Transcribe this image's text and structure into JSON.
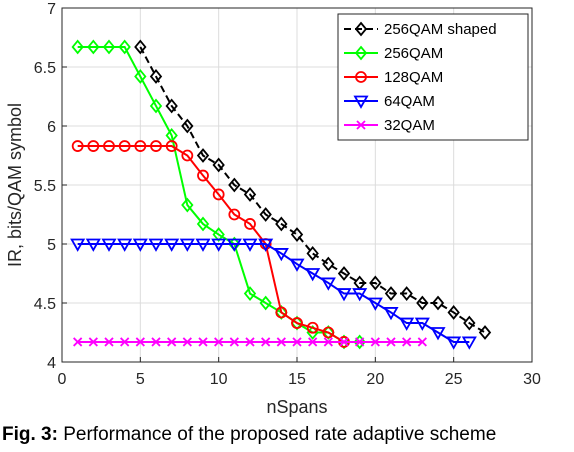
{
  "caption": {
    "label": "Fig. 3:",
    "text": " Performance of the proposed rate adaptive scheme"
  },
  "chart_data": {
    "type": "line",
    "xlabel": "nSpans",
    "ylabel": "IR, bits/QAM symbol",
    "xlim": [
      0,
      30
    ],
    "ylim": [
      4,
      7
    ],
    "xticks": [
      0,
      5,
      10,
      15,
      20,
      25,
      30
    ],
    "yticks": [
      4,
      4.5,
      5,
      5.5,
      6,
      6.5,
      7
    ],
    "ytick_labels": [
      "4",
      "4.5",
      "5",
      "5.5",
      "6",
      "6.5",
      "7"
    ],
    "grid": true,
    "legend_position": "top-right",
    "series": [
      {
        "name": "256QAM shaped",
        "color": "#000000",
        "dash": true,
        "marker": "diamond",
        "x": [
          5,
          6,
          7,
          8,
          9,
          10,
          11,
          12,
          13,
          14,
          15,
          16,
          17,
          18,
          19,
          20,
          21,
          22,
          23,
          24,
          25,
          26,
          27
        ],
        "y": [
          6.67,
          6.42,
          6.17,
          6.0,
          5.75,
          5.67,
          5.5,
          5.42,
          5.25,
          5.17,
          5.08,
          4.92,
          4.83,
          4.75,
          4.67,
          4.67,
          4.58,
          4.58,
          4.5,
          4.5,
          4.42,
          4.33,
          4.25
        ]
      },
      {
        "name": "256QAM",
        "color": "#00ff00",
        "dash": false,
        "marker": "diamond",
        "x": [
          1,
          2,
          3,
          4,
          5,
          6,
          7,
          8,
          9,
          10,
          11,
          12,
          13,
          14,
          15,
          16,
          17,
          18,
          19
        ],
        "y": [
          6.67,
          6.67,
          6.67,
          6.67,
          6.42,
          6.17,
          5.92,
          5.33,
          5.17,
          5.08,
          5.0,
          4.58,
          4.5,
          4.42,
          4.33,
          4.25,
          4.25,
          4.17,
          4.17
        ]
      },
      {
        "name": "128QAM",
        "color": "#ff0000",
        "dash": false,
        "marker": "circle",
        "x": [
          1,
          2,
          3,
          4,
          5,
          6,
          7,
          8,
          9,
          10,
          11,
          12,
          13,
          14,
          15,
          16,
          17,
          18
        ],
        "y": [
          5.83,
          5.83,
          5.83,
          5.83,
          5.83,
          5.83,
          5.83,
          5.75,
          5.58,
          5.42,
          5.25,
          5.17,
          5.0,
          4.42,
          4.33,
          4.29,
          4.25,
          4.17
        ]
      },
      {
        "name": "64QAM",
        "color": "#0000ff",
        "dash": false,
        "marker": "triangle-down",
        "x": [
          1,
          2,
          3,
          4,
          5,
          6,
          7,
          8,
          9,
          10,
          11,
          12,
          13,
          14,
          15,
          16,
          17,
          18,
          19,
          20,
          21,
          22,
          23,
          24,
          25,
          26
        ],
        "y": [
          5.0,
          5.0,
          5.0,
          5.0,
          5.0,
          5.0,
          5.0,
          5.0,
          5.0,
          5.0,
          5.0,
          5.0,
          5.0,
          4.92,
          4.83,
          4.75,
          4.67,
          4.58,
          4.58,
          4.5,
          4.42,
          4.33,
          4.33,
          4.25,
          4.17,
          4.17
        ]
      },
      {
        "name": "32QAM",
        "color": "#ff00ff",
        "dash": false,
        "marker": "x",
        "x": [
          1,
          2,
          3,
          4,
          5,
          6,
          7,
          8,
          9,
          10,
          11,
          12,
          13,
          14,
          15,
          16,
          17,
          18,
          19,
          20,
          21,
          22,
          23
        ],
        "y": [
          4.17,
          4.17,
          4.17,
          4.17,
          4.17,
          4.17,
          4.17,
          4.17,
          4.17,
          4.17,
          4.17,
          4.17,
          4.17,
          4.17,
          4.17,
          4.17,
          4.17,
          4.17,
          4.17,
          4.17,
          4.17,
          4.17,
          4.17
        ]
      }
    ]
  }
}
